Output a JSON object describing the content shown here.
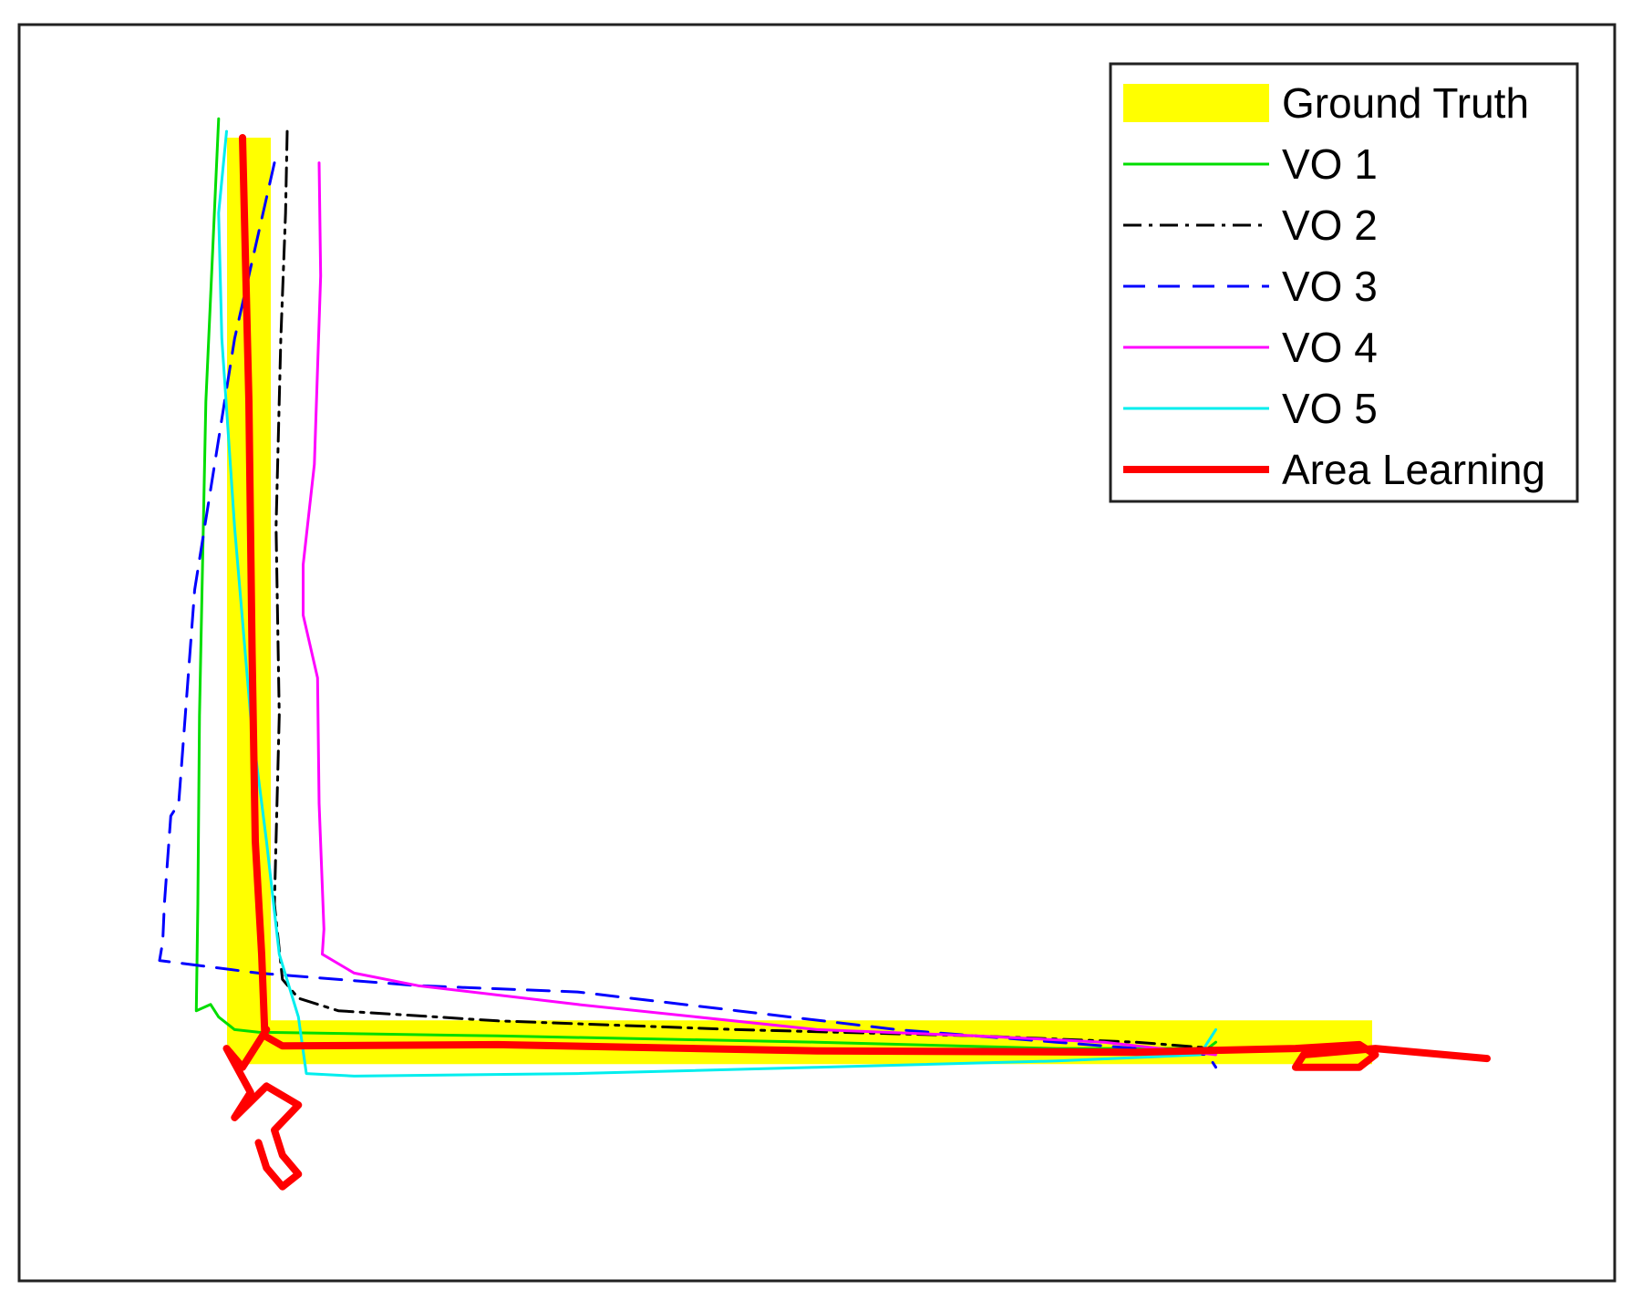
{
  "chart_data": {
    "type": "line",
    "title": "",
    "xlabel": "",
    "ylabel": "",
    "xlim": [
      0,
      100
    ],
    "ylim": [
      0,
      100
    ],
    "grid": false,
    "axis_ticks_visible": false,
    "legend": {
      "placement": "top-right",
      "entries": [
        "Ground Truth",
        "VO 1",
        "VO 2",
        "VO 3",
        "VO 4",
        "VO 5",
        "Area Learning"
      ]
    },
    "series": [
      {
        "name": "Ground Truth",
        "color": "#ffff00",
        "style": "thick-solid",
        "x": [
          14.4,
          14.4,
          84.8
        ],
        "y": [
          91.0,
          19.0,
          19.0
        ]
      },
      {
        "name": "VO 1",
        "color": "#00dd00",
        "style": "solid",
        "x": [
          12.5,
          11.7,
          11.3,
          11.2,
          11.1,
          12.0,
          12.5,
          13.5,
          15.0,
          30.0,
          50.0,
          65.0,
          74.5,
          75.0
        ],
        "y": [
          92.5,
          70.0,
          45.0,
          30.0,
          21.5,
          22.0,
          21.0,
          20.0,
          19.8,
          19.5,
          19.0,
          18.5,
          18.5,
          19.0
        ]
      },
      {
        "name": "VO 2",
        "color": "#000000",
        "style": "dash-dot",
        "x": [
          16.8,
          16.7,
          16.4,
          16.1,
          16.3,
          16.0,
          16.5,
          17.5,
          20.0,
          30.0,
          45.0,
          60.0,
          70.0,
          75.0
        ],
        "y": [
          91.5,
          85.0,
          75.0,
          60.0,
          45.0,
          30.0,
          24.0,
          22.5,
          21.5,
          20.7,
          20.0,
          19.5,
          19.0,
          18.5
        ]
      },
      {
        "name": "VO 3",
        "color": "#0000ff",
        "style": "dashed",
        "x": [
          16.0,
          13.5,
          11.0,
          10.0,
          9.5,
          9.1,
          9.0,
          8.8,
          15.0,
          25.0,
          35.0,
          45.0,
          55.0,
          65.0,
          70.0,
          74.5,
          75.0
        ],
        "y": [
          89.0,
          75.0,
          55.0,
          38.0,
          37.0,
          30.0,
          27.0,
          25.5,
          24.5,
          23.5,
          23.0,
          21.5,
          20.0,
          19.0,
          18.5,
          18.0,
          17.0
        ]
      },
      {
        "name": "VO 4",
        "color": "#ff00ff",
        "style": "solid",
        "x": [
          18.8,
          18.9,
          18.5,
          17.8,
          17.8,
          18.7,
          18.8,
          19.1,
          19.0,
          21.0,
          25.0,
          35.0,
          50.0,
          60.0,
          68.0,
          75.0
        ],
        "y": [
          89.0,
          80.0,
          65.0,
          57.0,
          53.0,
          48.0,
          38.0,
          28.0,
          26.0,
          24.5,
          23.5,
          22.0,
          20.0,
          19.5,
          19.0,
          18.0
        ]
      },
      {
        "name": "VO 5",
        "color": "#00eeee",
        "style": "solid",
        "x": [
          13.0,
          12.5,
          12.7,
          13.5,
          14.5,
          15.5,
          16.3,
          17.5,
          18.0,
          21.0,
          35.0,
          50.0,
          65.0,
          74.0,
          75.0
        ],
        "y": [
          91.5,
          85.0,
          75.0,
          60.0,
          45.0,
          35.0,
          26.0,
          21.0,
          16.5,
          16.3,
          16.5,
          17.0,
          17.5,
          18.0,
          20.0
        ]
      },
      {
        "name": "Area Learning",
        "color": "#ff0000",
        "style": "thick-solid",
        "x": [
          14.0,
          14.4,
          14.6,
          14.8,
          15.2,
          15.4,
          16.5,
          30.0,
          50.0,
          70.0,
          80.0,
          84.0,
          85.0,
          84.0,
          80.0,
          80.5,
          85.0,
          92.0
        ],
        "y": [
          91.0,
          70.0,
          50.0,
          35.0,
          26.0,
          19.5,
          18.7,
          18.8,
          18.3,
          18.2,
          18.5,
          18.8,
          18.0,
          17.0,
          17.0,
          18.0,
          18.5,
          17.7
        ]
      },
      {
        "name": "Area Learning excursion",
        "color": "#ff0000",
        "style": "thick-solid",
        "x": [
          15.5,
          14.0,
          13.0,
          14.5,
          13.5,
          15.5,
          17.5,
          16.0,
          16.5,
          17.5,
          16.5,
          15.5,
          15.0
        ],
        "y": [
          20.0,
          17.0,
          18.5,
          15.0,
          13.0,
          15.5,
          14.0,
          12.0,
          10.0,
          8.5,
          7.5,
          9.0,
          11.0
        ]
      }
    ]
  }
}
